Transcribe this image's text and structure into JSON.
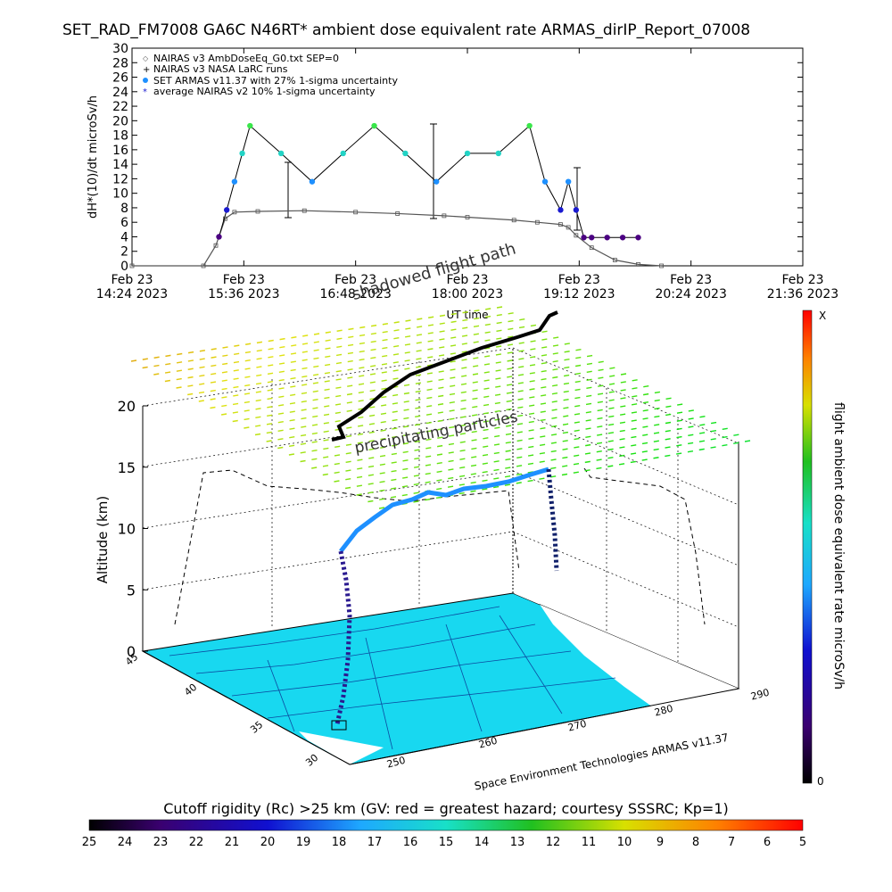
{
  "title": "SET_RAD_FM7008  GA6C N46RT* ambient dose equivalent rate ARMAS_dirIP_Report_07008",
  "top_chart": {
    "ylabel": "dH*(10)/dt microSv/h",
    "xlabel": "UT time",
    "legend": [
      "NAIRAS v3 AmbDoseEq_G0.txt SEP=0",
      "NAIRAS v3 NASA LaRC runs",
      "SET ARMAS v11.37 with 27% 1-sigma uncertainty",
      "average NAIRAS v2 10% 1-sigma uncertainty"
    ],
    "yticks": [
      "0",
      "2",
      "4",
      "6",
      "8",
      "10",
      "12",
      "14",
      "16",
      "18",
      "20",
      "22",
      "24",
      "26",
      "28",
      "30"
    ],
    "xticks": [
      {
        "top": "Feb 23",
        "bottom": "14:24 2023"
      },
      {
        "top": "Feb 23",
        "bottom": "15:36 2023"
      },
      {
        "top": "Feb 23",
        "bottom": "16:48 2023"
      },
      {
        "top": "Feb 23",
        "bottom": "18:00 2023"
      },
      {
        "top": "Feb 23",
        "bottom": "19:12 2023"
      },
      {
        "top": "Feb 23",
        "bottom": "20:24 2023"
      },
      {
        "top": "Feb 23",
        "bottom": "21:36 2023"
      }
    ]
  },
  "chart_data": [
    {
      "type": "scatter",
      "title": "SET_RAD_FM7008  GA6C N46RT* ambient dose equivalent rate ARMAS_dirIP_Report_07008",
      "xlabel": "UT time",
      "ylabel": "dH*(10)/dt microSv/h",
      "xlim": [
        "2023-02-23 14:24",
        "2023-02-23 21:36"
      ],
      "ylim": [
        0,
        30
      ],
      "series": [
        {
          "name": "NAIRAS v3 AmbDoseEq_G0.txt SEP=0",
          "x": [
            "14:24",
            "15:10",
            "15:18",
            "15:24",
            "15:30",
            "15:45",
            "16:15",
            "16:48",
            "17:15",
            "17:45",
            "18:00",
            "18:30",
            "18:45",
            "19:00",
            "19:05",
            "19:10",
            "19:20",
            "19:35",
            "19:50",
            "20:05"
          ],
          "y": [
            0,
            0,
            2.8,
            6.5,
            7.4,
            7.5,
            7.6,
            7.4,
            7.2,
            6.9,
            6.7,
            6.3,
            6.0,
            5.7,
            5.3,
            4.2,
            2.5,
            0.8,
            0.2,
            0
          ]
        },
        {
          "name": "SET ARMAS v11.37 with 27% 1-sigma uncertainty",
          "x": [
            "15:20",
            "15:25",
            "15:30",
            "15:35",
            "15:40",
            "16:00",
            "16:20",
            "16:40",
            "17:00",
            "17:20",
            "17:40",
            "18:00",
            "18:20",
            "18:40",
            "18:50",
            "19:00",
            "19:05",
            "19:10",
            "19:15",
            "19:20",
            "19:30",
            "19:40",
            "19:50"
          ],
          "y": [
            4.0,
            7.7,
            11.6,
            15.5,
            19.3,
            15.5,
            11.6,
            15.5,
            19.3,
            15.5,
            11.6,
            15.5,
            15.5,
            19.3,
            11.6,
            7.7,
            11.6,
            7.7,
            3.9,
            3.9,
            3.9,
            3.9,
            3.9
          ]
        }
      ]
    },
    {
      "type": "heatmap",
      "xlabel": "",
      "ylabel": "Altitude (km)",
      "zlim": [
        0,
        20
      ],
      "zticks": [
        "0",
        "5",
        "10",
        "15",
        "20"
      ],
      "longitude_ticks": [
        "250",
        "260",
        "270",
        "280",
        "290"
      ],
      "latitude_ticks": [
        "30",
        "35",
        "40",
        "45"
      ],
      "colorbar": {
        "label": "flight ambient dose equivalent rate microSv/h",
        "max_label": "X",
        "min_label": "0"
      },
      "annotations": [
        "shadowed flight path",
        "precipitating particles"
      ]
    }
  ],
  "footer": {
    "credit": "Space Environment Technologies ARMAS v11.37",
    "cutoff_label": "Cutoff rigidity (Rc) >25 km (GV: red = greatest hazard; courtesy SSSRC; Kp=1)",
    "cutoff_ticks": [
      "25",
      "24",
      "23",
      "22",
      "21",
      "20",
      "19",
      "18",
      "17",
      "16",
      "15",
      "14",
      "13",
      "12",
      "11",
      "10",
      "9",
      "8",
      "7",
      "6",
      "5"
    ]
  },
  "colors": {
    "hot": "#ff0000",
    "cold": "#000000",
    "nairas_green": "#32cd32",
    "cyan": "#22d3c5",
    "blue": "#1e90ff",
    "navy": "#1010c0",
    "purple": "#4b0082",
    "map_fill": "#18d8f0"
  }
}
